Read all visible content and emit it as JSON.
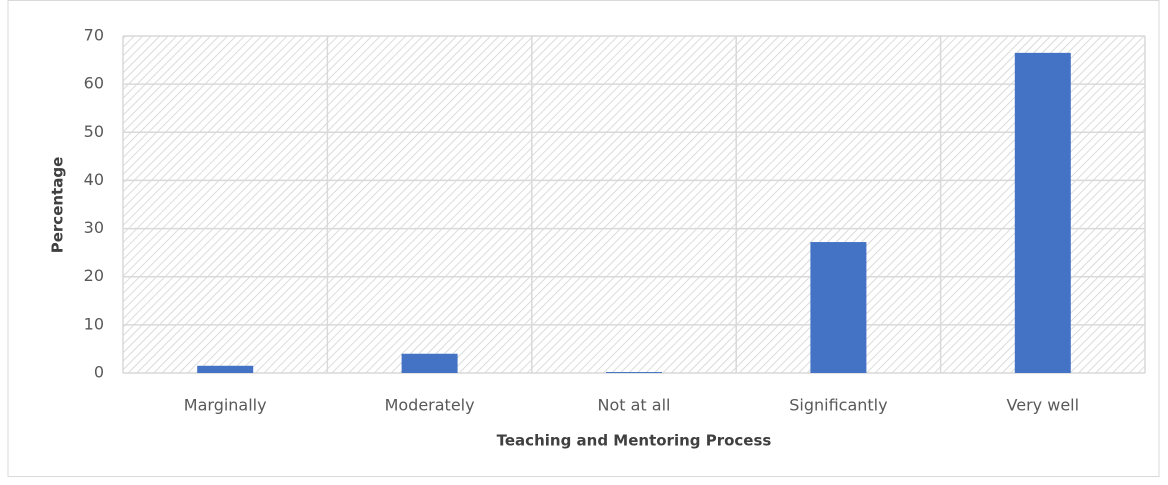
{
  "chart_data": {
    "type": "bar",
    "x_label": "Teaching and Mentoring Process",
    "y_label": "Percentage",
    "categories": [
      "Marginally",
      "Moderately",
      "Not at all",
      "Significantly",
      "Very well"
    ],
    "values": [
      1.5,
      4,
      0.2,
      27.2,
      66.5
    ],
    "color": "#4472c4",
    "ylim": [
      0,
      70
    ],
    "yticks": [
      0,
      10,
      20,
      30,
      40,
      50,
      60,
      70
    ],
    "grid": true
  }
}
